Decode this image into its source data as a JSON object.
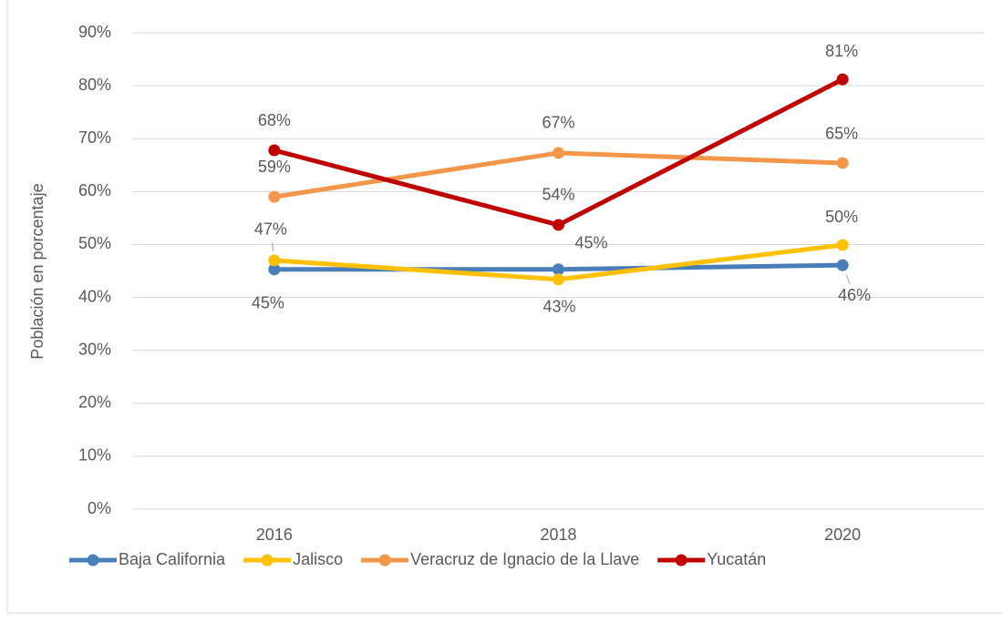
{
  "chart_data": {
    "type": "line",
    "y_label": "Población en porcentaje",
    "categories": [
      "2016",
      "2018",
      "2020"
    ],
    "series": [
      {
        "name": "Baja California",
        "color": "#4a7ebb",
        "values": [
          45.3,
          45.3,
          46.1
        ],
        "value_labels": [
          "45%",
          "45%",
          "46%"
        ]
      },
      {
        "name": "Jalisco",
        "color": "#ffc000",
        "values": [
          47.0,
          43.4,
          49.9
        ],
        "value_labels": [
          "47%",
          "43%",
          "50%"
        ]
      },
      {
        "name": "Veracruz de Ignacio de la Llave",
        "color": "#f4964a",
        "values": [
          59.0,
          67.3,
          65.4
        ],
        "value_labels": [
          "59%",
          "67%",
          "65%"
        ]
      },
      {
        "name": "Yucatán",
        "color": "#c00000",
        "values": [
          67.8,
          53.7,
          81.2
        ],
        "value_labels": [
          "68%",
          "54%",
          "81%"
        ]
      }
    ],
    "ylim": [
      0,
      90
    ],
    "yticks": [
      {
        "value": 0,
        "label": "0%"
      },
      {
        "value": 10,
        "label": "10%"
      },
      {
        "value": 20,
        "label": "20%"
      },
      {
        "value": 30,
        "label": "30%"
      },
      {
        "value": 40,
        "label": "40%"
      },
      {
        "value": 50,
        "label": "50%"
      },
      {
        "value": 60,
        "label": "60%"
      },
      {
        "value": 70,
        "label": "70%"
      },
      {
        "value": 80,
        "label": "80%"
      },
      {
        "value": 90,
        "label": "90%"
      }
    ],
    "grid": true,
    "legend": "bottom"
  }
}
